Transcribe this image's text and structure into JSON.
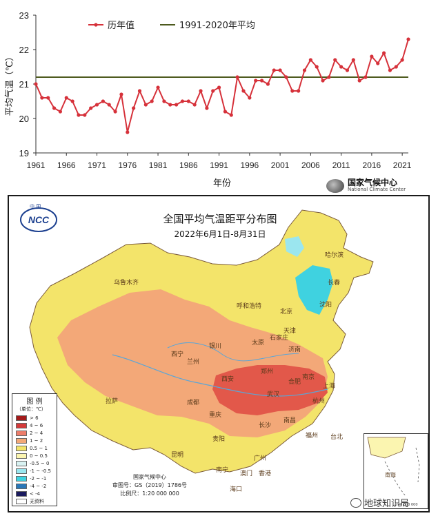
{
  "chart_data": [
    {
      "type": "line",
      "title": "",
      "xlabel": "年份",
      "ylabel": "平均气温（℃）",
      "ylim": [
        19,
        23
      ],
      "xlim": [
        1961,
        2022
      ],
      "grid": false,
      "legend_position": "top-left",
      "xticks": [
        "1961",
        "1966",
        "1971",
        "1976",
        "1981",
        "1986",
        "1991",
        "1996",
        "2001",
        "2006",
        "2011",
        "2016",
        "2021"
      ],
      "yticks": [
        "19",
        "20",
        "21",
        "22",
        "23"
      ],
      "series": [
        {
          "name": "历年值",
          "color": "#d6313a",
          "x": [
            1961,
            1962,
            1963,
            1964,
            1965,
            1966,
            1967,
            1968,
            1969,
            1970,
            1971,
            1972,
            1973,
            1974,
            1975,
            1976,
            1977,
            1978,
            1979,
            1980,
            1981,
            1982,
            1983,
            1984,
            1985,
            1986,
            1987,
            1988,
            1989,
            1990,
            1991,
            1992,
            1993,
            1994,
            1995,
            1996,
            1997,
            1998,
            1999,
            2000,
            2001,
            2002,
            2003,
            2004,
            2005,
            2006,
            2007,
            2008,
            2009,
            2010,
            2011,
            2012,
            2013,
            2014,
            2015,
            2016,
            2017,
            2018,
            2019,
            2020,
            2021,
            2022
          ],
          "values": [
            21.0,
            20.6,
            20.6,
            20.3,
            20.2,
            20.6,
            20.5,
            20.1,
            20.1,
            20.3,
            20.4,
            20.5,
            20.4,
            20.2,
            20.7,
            19.6,
            20.3,
            20.8,
            20.4,
            20.5,
            20.9,
            20.5,
            20.4,
            20.4,
            20.5,
            20.5,
            20.4,
            20.8,
            20.3,
            20.8,
            20.9,
            20.2,
            20.1,
            21.2,
            20.8,
            20.6,
            21.1,
            21.1,
            21.0,
            21.4,
            21.4,
            21.2,
            20.8,
            20.8,
            21.4,
            21.7,
            21.5,
            21.1,
            21.2,
            21.7,
            21.5,
            21.4,
            21.7,
            21.1,
            21.2,
            21.8,
            21.6,
            21.9,
            21.4,
            21.5,
            21.7,
            22.3
          ]
        },
        {
          "name": "1991-2020年平均",
          "color": "#4d5a1e",
          "x": [
            1961,
            2022
          ],
          "values": [
            21.2,
            21.2
          ]
        }
      ]
    },
    {
      "type": "heatmap",
      "title": "全国平均气温距平分布图",
      "subtitle": "2022年6月1日-8月31日",
      "legend_title": "图 例",
      "legend_unit": "（单位：℃）",
      "legend": [
        {
          "label": "> 6",
          "color": "#a31a1a"
        },
        {
          "label": "4 ~ 6",
          "color": "#d53b3b"
        },
        {
          "label": "2 ~ 4",
          "color": "#ed7d6a"
        },
        {
          "label": "1 ~ 2",
          "color": "#f3a878"
        },
        {
          "label": "0.5 ~ 1",
          "color": "#f3e46a"
        },
        {
          "label": "0 ~ 0.5",
          "color": "#fbf5b0"
        },
        {
          "label": "-0.5 ~ 0",
          "color": "#d9f2f2"
        },
        {
          "label": "-1 ~ -0.5",
          "color": "#9be6ef"
        },
        {
          "label": "-2 ~ -1",
          "color": "#3fd2e0"
        },
        {
          "label": "-4 ~ -2",
          "color": "#2a77b8"
        },
        {
          "label": "< -4",
          "color": "#1a1a5e"
        },
        {
          "label": "无资料",
          "color": "#ffffff"
        }
      ],
      "cities": [
        "哈尔滨",
        "长春",
        "沈阳",
        "乌鲁木齐",
        "呼和浩特",
        "北京",
        "天津",
        "石家庄",
        "太原",
        "济南",
        "银川",
        "兰州",
        "西宁",
        "西安",
        "郑州",
        "合肥",
        "南京",
        "上海",
        "武汉",
        "杭州",
        "成都",
        "重庆",
        "长沙",
        "南昌",
        "贵阳",
        "福州",
        "台北",
        "拉萨",
        "昆明",
        "南宁",
        "广州",
        "澳门",
        "香港",
        "海口",
        "南海"
      ]
    }
  ],
  "top_logo": {
    "cn": "国家气候中心",
    "en": "National Climate Center"
  },
  "map_logo": {
    "top_text": "中 国",
    "text": "NCC"
  },
  "footer": {
    "line1": "国家气候中心",
    "line2": "审图号：GS（2019）1786号",
    "line3": "比例尺：1:20 000 000"
  },
  "inset_scale": "1:40 000 000",
  "watermark": "地球知识局"
}
